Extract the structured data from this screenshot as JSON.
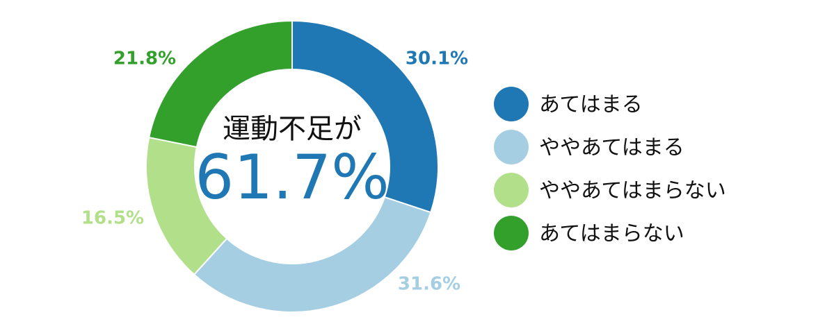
{
  "chart_data": {
    "type": "pie",
    "center_title": "運動不足が",
    "center_value": "61.7%",
    "categories": [
      "あてはまる",
      "ややあてはまる",
      "ややあてはまらない",
      "あてはまらない"
    ],
    "values": [
      30.1,
      31.6,
      16.5,
      21.8
    ],
    "value_labels": [
      "30.1%",
      "31.6%",
      "16.5%",
      "21.8%"
    ],
    "colors": [
      "#1f78b4",
      "#a6cee3",
      "#b2df8a",
      "#33a02c"
    ],
    "legend": "right"
  }
}
